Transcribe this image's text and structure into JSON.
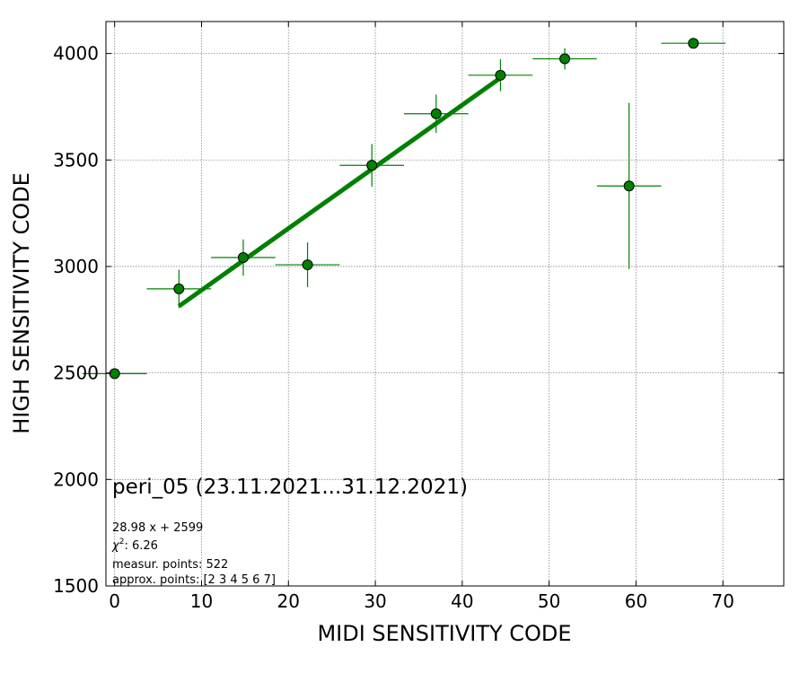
{
  "chart_data": {
    "type": "scatter",
    "title": "peri_05 (23.11.2021...31.12.2021)",
    "xlabel": "MIDI SENSITIVITY CODE",
    "ylabel": "HIGH SENSITIVITY CODE",
    "xlim": [
      -1,
      77
    ],
    "ylim": [
      1500,
      4150
    ],
    "x_ticks": [
      0,
      10,
      20,
      30,
      40,
      50,
      60,
      70
    ],
    "y_ticks": [
      1500,
      2000,
      2500,
      3000,
      3500,
      4000
    ],
    "grid": true,
    "marker_color": "#008000",
    "fit_color": "#008000",
    "series": [
      {
        "points": [
          {
            "x": 0,
            "y": 2497,
            "xerr": 3.7,
            "yerr": 20
          },
          {
            "x": 7.4,
            "y": 2895,
            "xerr": 3.7,
            "yerr": 90
          },
          {
            "x": 14.8,
            "y": 3042,
            "xerr": 3.7,
            "yerr": 85
          },
          {
            "x": 22.2,
            "y": 3008,
            "xerr": 3.7,
            "yerr": 105
          },
          {
            "x": 29.6,
            "y": 3475,
            "xerr": 3.7,
            "yerr": 100
          },
          {
            "x": 37.0,
            "y": 3717,
            "xerr": 3.7,
            "yerr": 90
          },
          {
            "x": 44.4,
            "y": 3898,
            "xerr": 3.7,
            "yerr": 75
          },
          {
            "x": 51.8,
            "y": 3975,
            "xerr": 3.7,
            "yerr": 50
          },
          {
            "x": 59.2,
            "y": 3378,
            "xerr": 3.7,
            "yerr": 390
          },
          {
            "x": 66.6,
            "y": 4048,
            "xerr": 3.7,
            "yerr": 0
          }
        ]
      }
    ],
    "fit": {
      "slope": 28.98,
      "intercept": 2599,
      "x_range": [
        7.4,
        44.4
      ]
    },
    "annotations": [
      "28.98 x + 2599",
      "measur. points: 522",
      "approx. points: [2 3 4 5 6 7]"
    ],
    "chi2_label": "χ",
    "chi2_value": ": 6.26"
  }
}
